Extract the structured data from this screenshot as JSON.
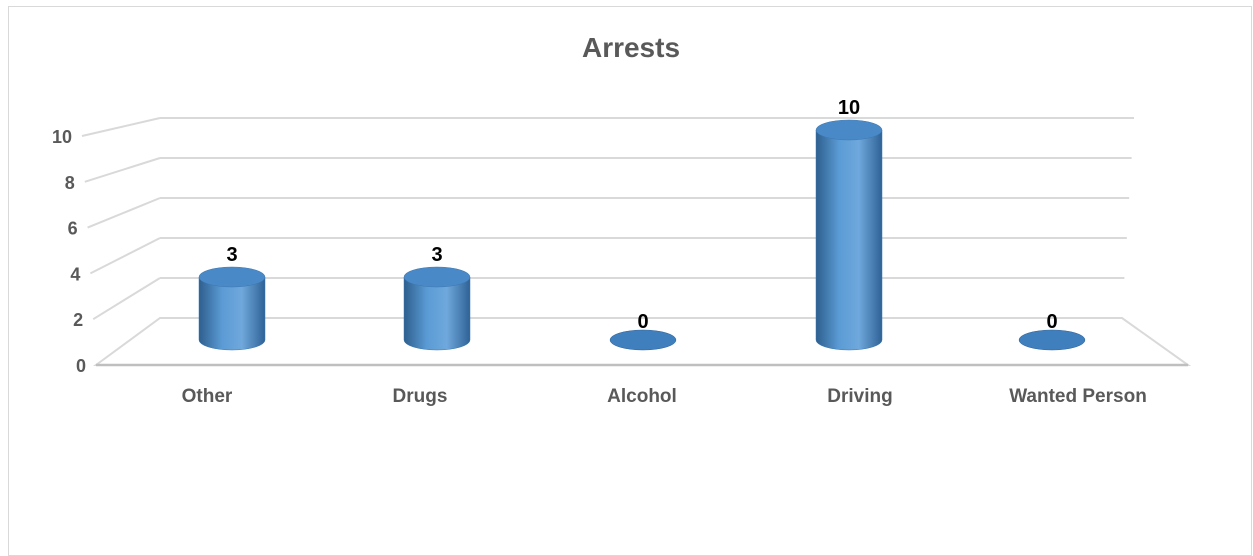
{
  "chart_data": {
    "type": "bar",
    "style": "3d-cylinder",
    "title": "Arrests",
    "categories": [
      "Other",
      "Drugs",
      "Alcohol",
      "Driving",
      "Wanted Person"
    ],
    "values": [
      3,
      3,
      0,
      10,
      0
    ],
    "data_labels": [
      "3",
      "3",
      "0",
      "10",
      "0"
    ],
    "ylim": [
      0,
      10
    ],
    "yticks": [
      "0",
      "2",
      "4",
      "6",
      "8",
      "10"
    ],
    "xlabel": "",
    "ylabel": "",
    "grid": true,
    "legend": "none",
    "colors": {
      "bar": "#5b9bd5",
      "grid": "#d9d9d9",
      "text": "#595959"
    }
  }
}
